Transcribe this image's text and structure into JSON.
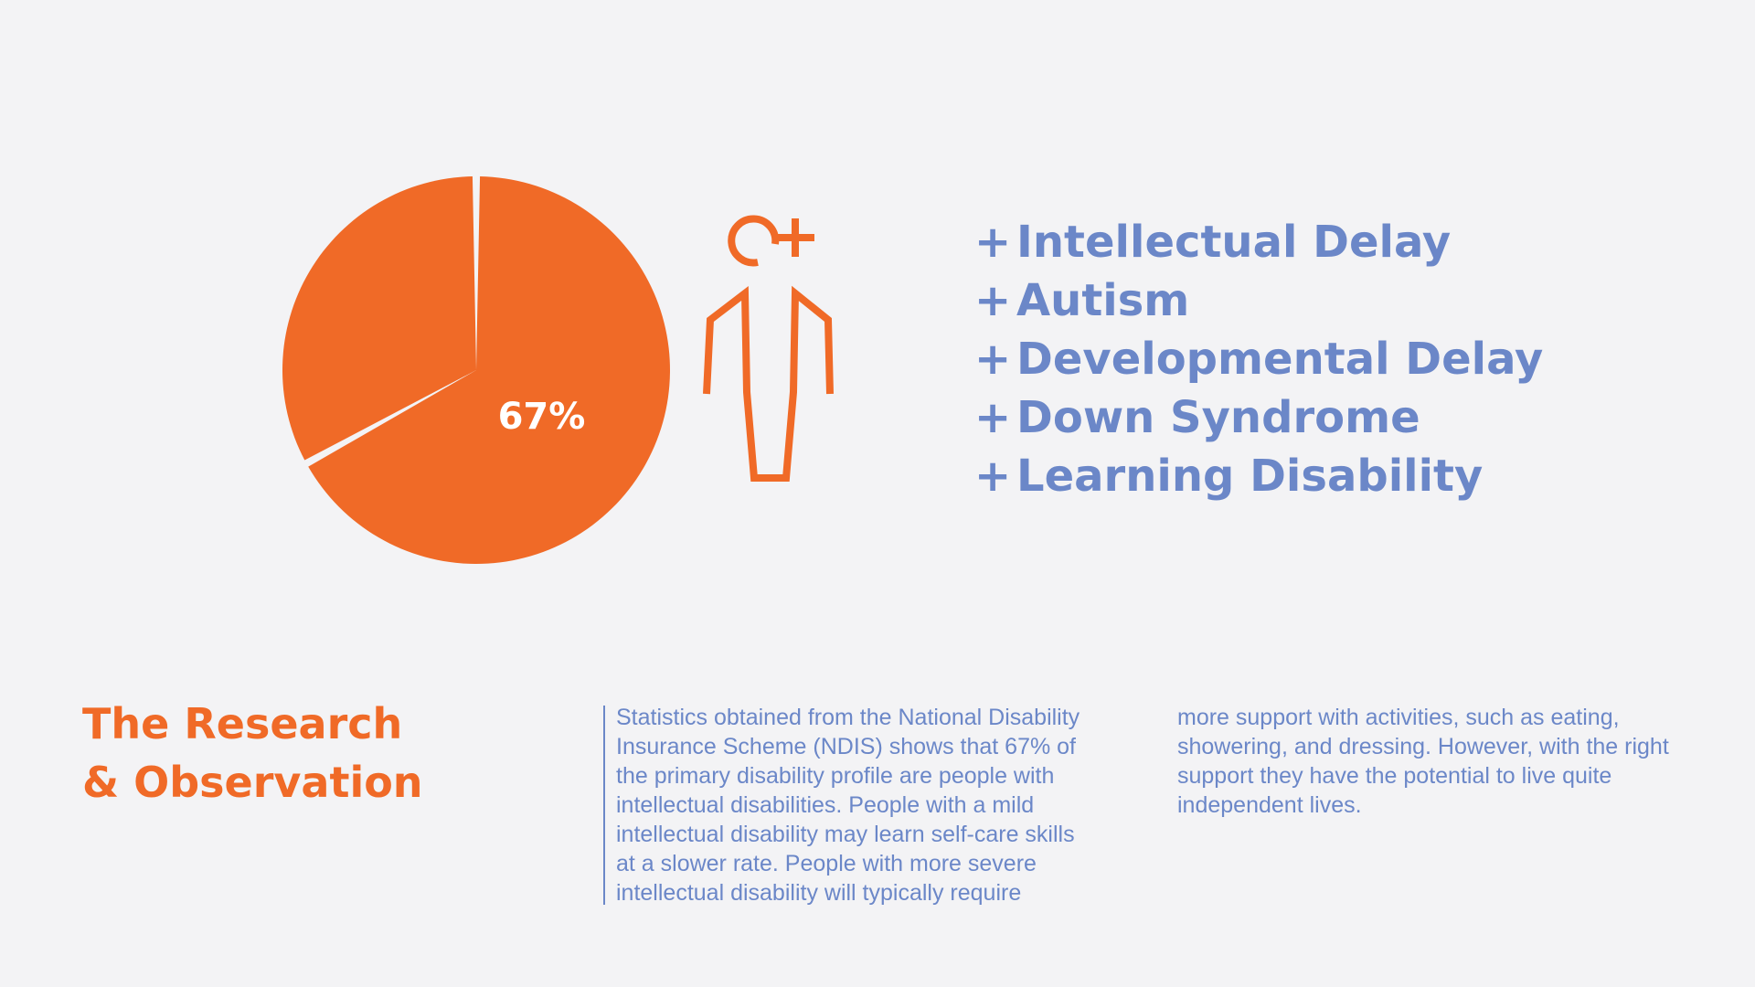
{
  "colors": {
    "background": "#f3f3f5",
    "accent_orange": "#f06a27",
    "accent_blue": "#6b87c8"
  },
  "chart_data": {
    "type": "pie",
    "values": [
      67,
      33
    ],
    "data_labels": [
      "67%",
      ""
    ],
    "colors": [
      "#f06a27",
      "#f06a27"
    ],
    "highlight_label": "67%"
  },
  "figure": {
    "icon": "person-with-plus-icon"
  },
  "conditions": {
    "prefix": "+",
    "items": [
      "Intellectual Delay",
      "Autism",
      "Developmental Delay",
      "Down Syndrome",
      "Learning Disability"
    ]
  },
  "section": {
    "title_lines": [
      "The Research",
      "& Observation"
    ],
    "body_left_lines": [
      "Statistics obtained from the National Disability",
      "Insurance Scheme (NDIS) shows that 67% of",
      "the primary disability profile are people with",
      "intellectual disabilities. People with a mild",
      "intellectual disability may learn self-care skills",
      "at a slower rate. People with more severe",
      "intellectual disability will typically require"
    ],
    "body_right_lines": [
      "more support with activities, such as eating,",
      "showering, and dressing. However, with the right",
      "support they have the potential to live quite",
      "independent lives."
    ]
  }
}
